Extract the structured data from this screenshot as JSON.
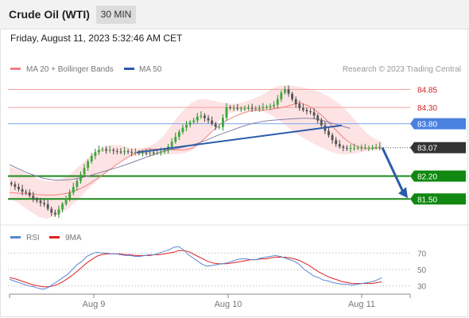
{
  "header": {
    "title": "Crude Oil (WTI)",
    "timeframe": "30 MIN",
    "datetime": "Friday, August 11, 2023 5:32:46 AM CET"
  },
  "legend": {
    "ma20_label": "MA 20 + Bollinger Bands",
    "ma50_label": "MA 50",
    "credit": "Research © 2023 Trading Central",
    "rsi_label": "RSI",
    "rsi_ma_label": "9MA"
  },
  "colors": {
    "up": "#2d8a2d",
    "down": "#444444",
    "ma20": "#f08080",
    "ma50": "#2b5ca8",
    "rsi": "#5b86d6",
    "rsi_ma": "#e02020",
    "resistance": "#e05050",
    "support": "#1a8a1a",
    "pivot": "#4a80e0",
    "current": "#333333",
    "trend_arrow": "#2b5ca8"
  },
  "chart_data": [
    {
      "type": "candlestick",
      "title": "Crude Oil (WTI)",
      "timeframe": "30 MIN",
      "ylim": [
        80.9,
        85.25
      ],
      "x_ticks": [
        "Aug 9",
        "Aug 10",
        "Aug 11"
      ],
      "levels": [
        {
          "value": 84.85,
          "label": "84.85",
          "kind": "resistance"
        },
        {
          "value": 84.3,
          "label": "84.30",
          "kind": "resistance"
        },
        {
          "value": 83.8,
          "label": "83.80",
          "kind": "pivot"
        },
        {
          "value": 83.07,
          "label": "83.07",
          "kind": "current"
        },
        {
          "value": 82.2,
          "label": "82.20",
          "kind": "support"
        },
        {
          "value": 81.5,
          "label": "81.50",
          "kind": "support"
        }
      ],
      "close_series": [
        81.95,
        81.87,
        81.8,
        81.72,
        81.7,
        81.6,
        81.5,
        81.45,
        81.38,
        81.34,
        81.2,
        81.08,
        81.03,
        81.18,
        81.35,
        81.52,
        81.69,
        81.87,
        82.05,
        82.25,
        82.45,
        82.65,
        82.82,
        82.93,
        83.0,
        83.02,
        82.98,
        83.0,
        82.97,
        82.95,
        82.93,
        82.96,
        82.94,
        82.92,
        82.93,
        82.9,
        82.91,
        82.9,
        82.92,
        82.91,
        82.92,
        82.95,
        83.0,
        83.1,
        83.25,
        83.4,
        83.55,
        83.68,
        83.77,
        83.85,
        83.9,
        84.02,
        84.05,
        83.97,
        83.9,
        83.8,
        83.7,
        83.7,
        83.98,
        84.3,
        84.28,
        84.28,
        84.27,
        84.27,
        84.27,
        84.28,
        84.26,
        84.27,
        84.28,
        84.31,
        84.32,
        84.34,
        84.38,
        84.55,
        84.75,
        84.85,
        84.72,
        84.55,
        84.4,
        84.28,
        84.22,
        84.18,
        84.15,
        84.05,
        83.9,
        83.75,
        83.58,
        83.45,
        83.3,
        83.18,
        83.1,
        83.06,
        83.04,
        83.06,
        83.06,
        83.06,
        83.07,
        83.07,
        83.07,
        83.07,
        83.08,
        83.1
      ],
      "ma20": [
        81.7,
        81.68,
        81.67,
        81.65,
        81.63,
        81.62,
        81.62,
        81.64,
        81.68,
        81.75,
        81.85,
        81.97,
        82.12,
        82.28,
        82.44,
        82.6,
        82.75,
        82.88,
        82.98,
        83.03,
        83.03,
        83.02,
        83.01,
        83.0,
        83.0,
        83.05,
        83.2,
        83.4,
        83.62,
        83.8,
        83.93,
        84.04,
        84.13,
        84.19,
        84.22,
        84.22,
        84.25,
        84.28,
        84.33,
        84.4,
        84.43,
        84.35,
        84.2,
        84.02,
        83.78,
        83.55,
        83.33,
        83.17,
        83.08,
        83.05,
        83.05,
        83.07
      ],
      "bollinger_upper": [
        82.5,
        82.4,
        82.3,
        82.2,
        82.1,
        82.05,
        82.05,
        82.1,
        82.2,
        82.4,
        82.6,
        82.8,
        82.98,
        83.1,
        83.15,
        83.15,
        83.1,
        83.05,
        83.05,
        83.1,
        83.2,
        83.4,
        83.7,
        84.0,
        84.25,
        84.45,
        84.55,
        84.55,
        84.5,
        84.45,
        84.42,
        84.42,
        84.45,
        84.52,
        84.62,
        84.72,
        84.88,
        84.97,
        84.98,
        84.95,
        84.92,
        84.88,
        84.82,
        84.72,
        84.6,
        84.45,
        84.25,
        84.0,
        83.75,
        83.5,
        83.35,
        83.25
      ],
      "bollinger_lower": [
        81.5,
        81.4,
        81.25,
        81.1,
        80.95,
        80.9,
        80.95,
        81.05,
        81.2,
        81.4,
        81.62,
        81.85,
        82.05,
        82.25,
        82.45,
        82.62,
        82.75,
        82.82,
        82.85,
        82.85,
        82.85,
        82.86,
        82.86,
        82.87,
        82.9,
        82.98,
        83.15,
        83.4,
        83.7,
        83.95,
        84.1,
        84.18,
        84.2,
        84.2,
        84.18,
        84.15,
        84.05,
        83.9,
        83.72,
        83.55,
        83.4,
        83.28,
        83.15,
        83.05,
        82.95,
        82.88,
        82.86,
        82.88,
        82.92,
        82.96,
        83.0,
        83.0
      ],
      "ma50": [
        82.55,
        82.42,
        82.3,
        82.2,
        82.12,
        82.08,
        82.08,
        82.1,
        82.15,
        82.22,
        82.3,
        82.38,
        82.46,
        82.55,
        82.65,
        82.75,
        82.85,
        82.94,
        83.01,
        83.06,
        83.12,
        83.2,
        83.3,
        83.42,
        83.52,
        83.62,
        83.72,
        83.8,
        83.86,
        83.9,
        83.92,
        83.94,
        83.96,
        83.97,
        83.96,
        83.9,
        83.82,
        83.74,
        83.66
      ],
      "trendlines": [
        {
          "from": [
            "Aug 9 20:30",
            82.92
          ],
          "to": [
            "Aug 11 00:30",
            83.75
          ]
        }
      ],
      "forecast_arrow": {
        "from": 83.07,
        "to": 81.5
      }
    },
    {
      "type": "line",
      "title": "RSI",
      "ylim": [
        20,
        80
      ],
      "y_ticks": [
        70,
        50,
        30
      ],
      "series": [
        {
          "name": "RSI",
          "values": [
            38,
            36,
            34,
            32,
            30,
            29,
            27,
            26,
            28,
            32,
            36,
            40,
            44,
            50,
            56,
            60,
            66,
            69,
            71,
            70,
            70,
            69,
            69,
            68,
            67,
            67,
            66,
            66,
            67,
            68,
            68,
            70,
            72,
            74,
            77,
            78,
            74,
            68,
            64,
            60,
            56,
            54,
            55,
            56,
            57,
            58,
            60,
            62,
            63,
            63,
            62,
            62,
            64,
            65,
            66,
            67,
            66,
            64,
            62,
            60,
            56,
            50,
            46,
            42,
            40,
            37,
            36,
            34,
            33,
            32,
            32,
            31,
            32,
            33,
            34,
            35,
            37,
            40
          ]
        },
        {
          "name": "9MA",
          "values": [
            40,
            39,
            37,
            35,
            33,
            31,
            30,
            29,
            29,
            30,
            32,
            35,
            39,
            43,
            48,
            53,
            58,
            62,
            66,
            68,
            69,
            69,
            69,
            69,
            68,
            68,
            67,
            67,
            67,
            67,
            68,
            68,
            69,
            70,
            71,
            73,
            73,
            72,
            69,
            66,
            63,
            60,
            58,
            57,
            57,
            57,
            58,
            59,
            60,
            61,
            62,
            62,
            63,
            63,
            64,
            65,
            65,
            65,
            64,
            63,
            61,
            58,
            55,
            51,
            47,
            44,
            41,
            39,
            37,
            35,
            34,
            33,
            33,
            33,
            33,
            33,
            34,
            35
          ]
        }
      ],
      "x_ticks": [
        "Aug 9",
        "Aug 10",
        "Aug 11"
      ]
    }
  ]
}
